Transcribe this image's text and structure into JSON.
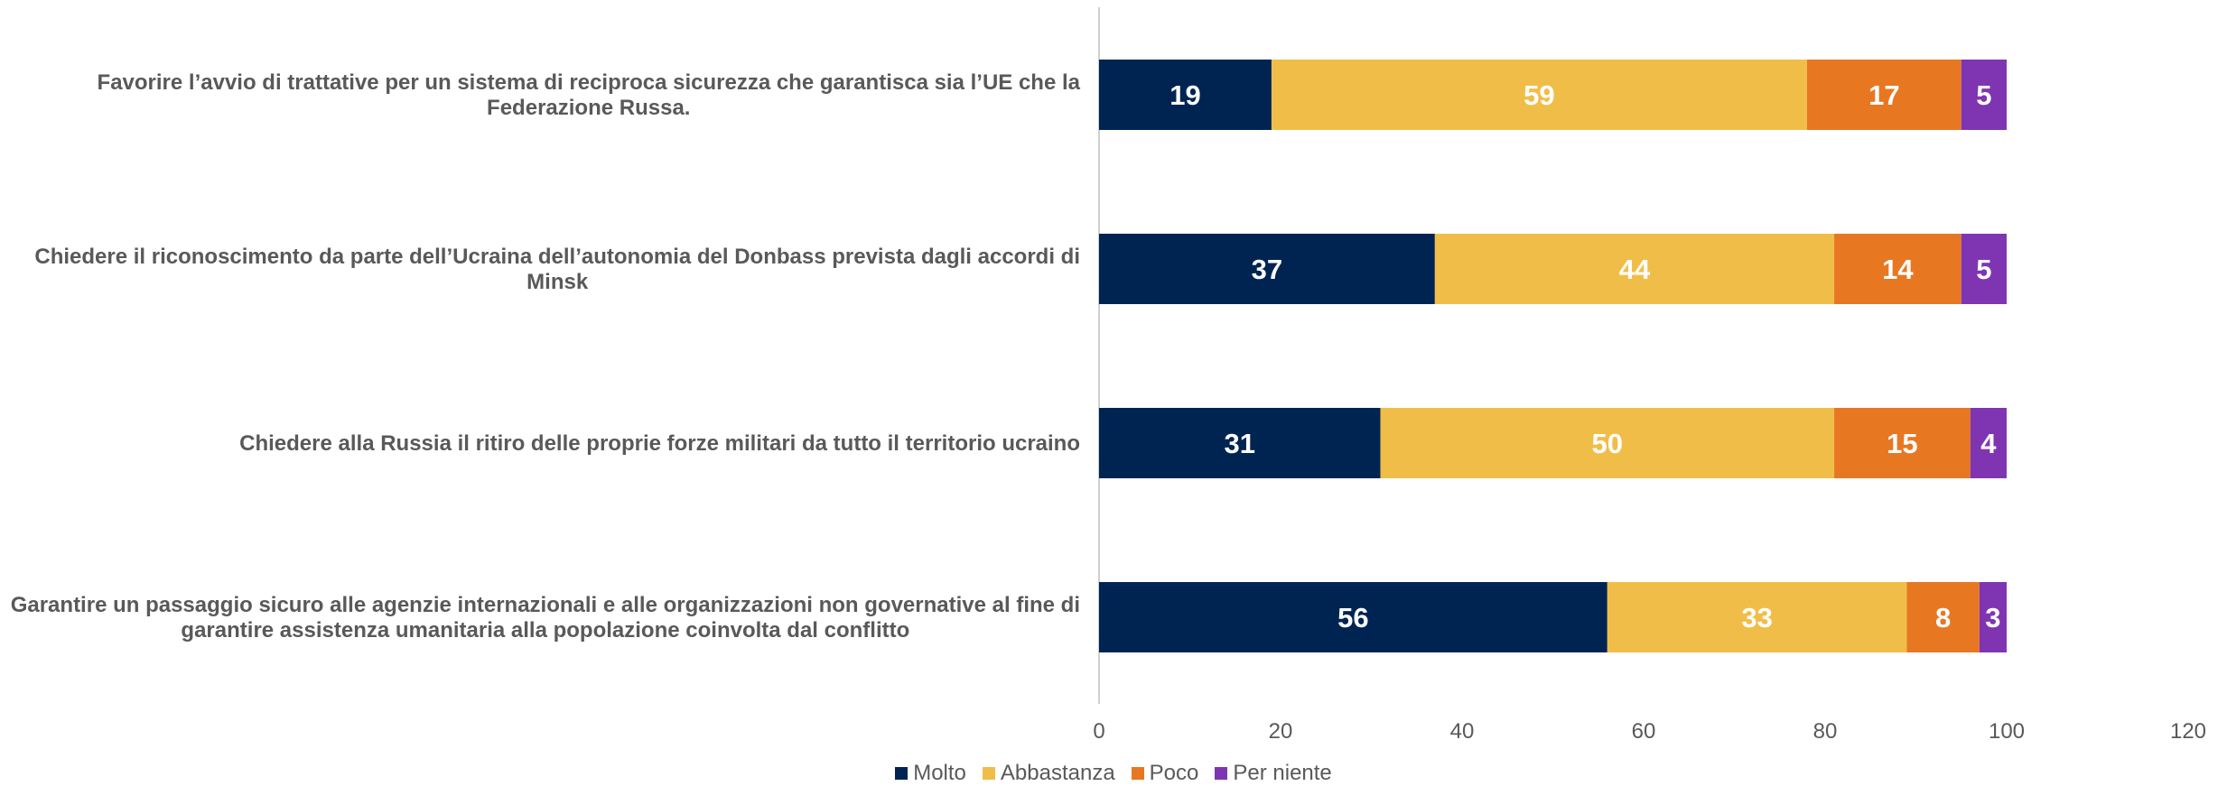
{
  "chart_data": {
    "type": "bar",
    "orientation": "horizontal",
    "stacked": true,
    "categories": [
      [
        "Favorire l’avvio di trattative per un sistema di reciproca sicurezza che garantisca sia l’UE che la",
        "Federazione Russa."
      ],
      [
        "Chiedere il riconoscimento da parte dell’Ucraina dell’autonomia del Donbass prevista dagli accordi di",
        "Minsk"
      ],
      [
        "Chiedere alla Russia il ritiro delle proprie forze militari da tutto il territorio ucraino"
      ],
      [
        "Garantire un passaggio sicuro alle agenzie internazionali e alle organizzazioni non governative al fine di",
        "garantire assistenza umanitaria alla popolazione coinvolta dal conflitto"
      ]
    ],
    "series": [
      {
        "name": "Molto",
        "color": "#002452",
        "values": [
          19,
          37,
          31,
          56
        ]
      },
      {
        "name": "Abbastanza",
        "color": "#F0BE48",
        "values": [
          59,
          44,
          50,
          33
        ]
      },
      {
        "name": "Poco",
        "color": "#E87722",
        "values": [
          17,
          14,
          15,
          8
        ]
      },
      {
        "name": "Per niente",
        "color": "#7F35B2",
        "values": [
          5,
          5,
          4,
          3
        ]
      }
    ],
    "xlim": [
      0,
      120
    ],
    "xticks": [
      "0",
      "20",
      "40",
      "60",
      "80",
      "100",
      "120"
    ],
    "grid": false,
    "legend": "bottom"
  }
}
